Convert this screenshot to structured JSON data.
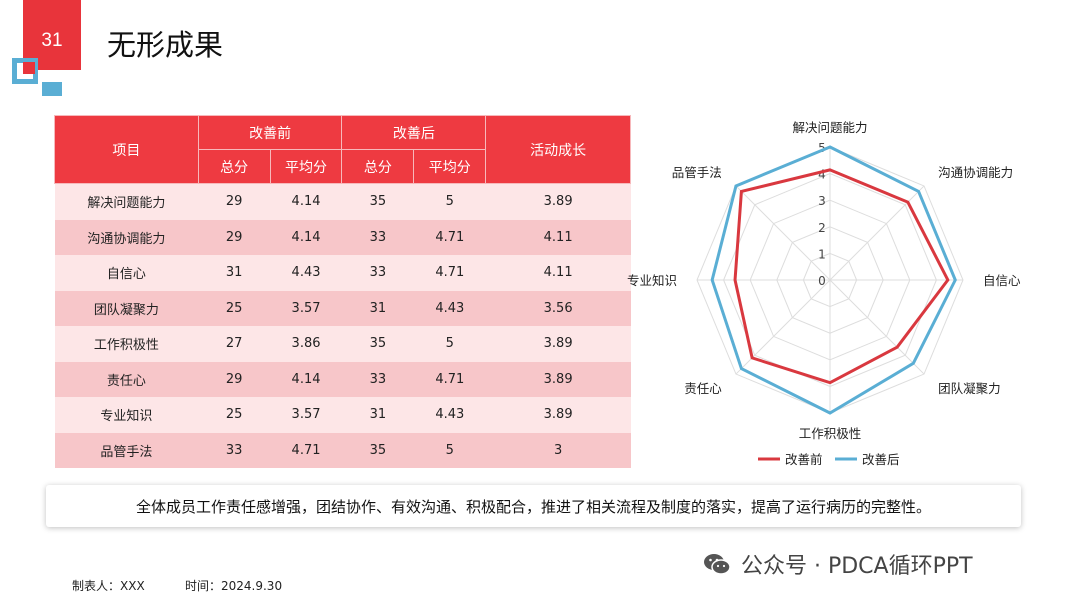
{
  "slide_number": "31",
  "title": "无形成果",
  "table": {
    "header_item": "项目",
    "header_before": "改善前",
    "header_after": "改善后",
    "header_growth": "活动成长",
    "sub_total": "总分",
    "sub_avg": "平均分",
    "rows": [
      {
        "item": "解决问题能力",
        "b_total": "29",
        "b_avg": "4.14",
        "a_total": "35",
        "a_avg": "5",
        "growth": "3.89"
      },
      {
        "item": "沟通协调能力",
        "b_total": "29",
        "b_avg": "4.14",
        "a_total": "33",
        "a_avg": "4.71",
        "growth": "4.11"
      },
      {
        "item": "自信心",
        "b_total": "31",
        "b_avg": "4.43",
        "a_total": "33",
        "a_avg": "4.71",
        "growth": "4.11"
      },
      {
        "item": "团队凝聚力",
        "b_total": "25",
        "b_avg": "3.57",
        "a_total": "31",
        "a_avg": "4.43",
        "growth": "3.56"
      },
      {
        "item": "工作积极性",
        "b_total": "27",
        "b_avg": "3.86",
        "a_total": "35",
        "a_avg": "5",
        "growth": "3.89"
      },
      {
        "item": "责任心",
        "b_total": "29",
        "b_avg": "4.14",
        "a_total": "33",
        "a_avg": "4.71",
        "growth": "3.89"
      },
      {
        "item": "专业知识",
        "b_total": "25",
        "b_avg": "3.57",
        "a_total": "31",
        "a_avg": "4.43",
        "growth": "3.89"
      },
      {
        "item": "品管手法",
        "b_total": "33",
        "b_avg": "4.71",
        "a_total": "35",
        "a_avg": "5",
        "growth": "3"
      }
    ]
  },
  "chart_data": {
    "type": "radar",
    "categories": [
      "解决问题能力",
      "沟通协调能力",
      "自信心",
      "团队凝聚力",
      "工作积极性",
      "责任心",
      "专业知识",
      "品管手法"
    ],
    "ticks": [
      "0",
      "1",
      "2",
      "3",
      "4",
      "5"
    ],
    "range": [
      0,
      5
    ],
    "series": [
      {
        "name": "改善前",
        "color": "#d9383f",
        "values": [
          4.14,
          4.14,
          4.43,
          3.57,
          3.86,
          4.14,
          3.57,
          4.71
        ]
      },
      {
        "name": "改善后",
        "color": "#5aaed4",
        "values": [
          5,
          4.71,
          4.71,
          4.43,
          5,
          4.71,
          4.43,
          5
        ]
      }
    ],
    "legend_position": "bottom"
  },
  "summary": "全体成员工作责任感增强，团结协作、有效沟通、积极配合，推进了相关流程及制度的落实，提高了运行病历的完整性。",
  "footer": {
    "maker": "制表人：XXX",
    "time": "时间：2024.9.30"
  },
  "watermark": "公众号 · PDCA循环PPT",
  "colors": {
    "accent_red": "#e8343b",
    "accent_blue": "#5aaed4"
  }
}
